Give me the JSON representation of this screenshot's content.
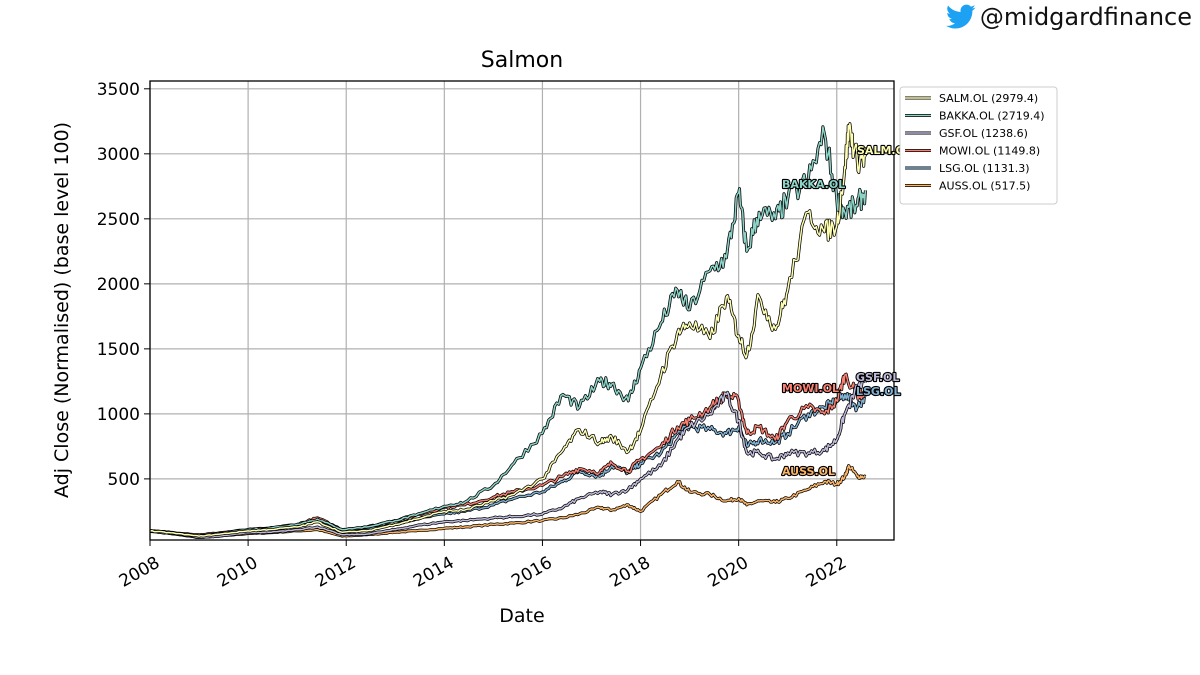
{
  "header": {
    "handle": "@midgardfinance",
    "icon": "twitter-bird-icon",
    "icon_color": "#1DA1F2"
  },
  "chart_data": {
    "type": "line",
    "title": "Salmon",
    "xlabel": "Date",
    "ylabel": "Adj Close (Normalised) (base level 100)",
    "xlim": [
      "2008-01-01",
      "2023-03-01"
    ],
    "ylim": [
      30,
      3560
    ],
    "x_ticks": [
      "2008",
      "2010",
      "2012",
      "2014",
      "2016",
      "2018",
      "2020",
      "2022"
    ],
    "y_ticks": [
      500,
      1000,
      1500,
      2000,
      2500,
      3000,
      3500
    ],
    "grid": true,
    "legend_position": "outside-right-top",
    "series": [
      {
        "name": "SALM.OL (2979.4)",
        "end_label": "SALM.OL",
        "color": "#FFFFB3",
        "points": [
          [
            "2008-01",
            100
          ],
          [
            "2008-06",
            85
          ],
          [
            "2009-01",
            60
          ],
          [
            "2009-06",
            75
          ],
          [
            "2010-01",
            100
          ],
          [
            "2010-06",
            110
          ],
          [
            "2011-01",
            130
          ],
          [
            "2011-06",
            170
          ],
          [
            "2011-12",
            90
          ],
          [
            "2012-06",
            100
          ],
          [
            "2013-01",
            150
          ],
          [
            "2013-06",
            190
          ],
          [
            "2014-01",
            250
          ],
          [
            "2014-06",
            260
          ],
          [
            "2015-01",
            330
          ],
          [
            "2015-06",
            380
          ],
          [
            "2016-01",
            500
          ],
          [
            "2016-06",
            720
          ],
          [
            "2016-10",
            880
          ],
          [
            "2017-03",
            780
          ],
          [
            "2017-06",
            820
          ],
          [
            "2017-10",
            710
          ],
          [
            "2018-01",
            870
          ],
          [
            "2018-06",
            1300
          ],
          [
            "2018-10",
            1620
          ],
          [
            "2019-01",
            1700
          ],
          [
            "2019-06",
            1580
          ],
          [
            "2019-10",
            1900
          ],
          [
            "2020-01",
            1600
          ],
          [
            "2020-03",
            1450
          ],
          [
            "2020-06",
            1900
          ],
          [
            "2020-10",
            1650
          ],
          [
            "2021-01",
            1950
          ],
          [
            "2021-06",
            2550
          ],
          [
            "2021-10",
            2400
          ],
          [
            "2022-01",
            2450
          ],
          [
            "2022-03",
            2900
          ],
          [
            "2022-04",
            3200
          ],
          [
            "2022-06",
            2950
          ],
          [
            "2022-08",
            2979.4
          ]
        ]
      },
      {
        "name": "BAKKA.OL (2719.4)",
        "end_label": "BAKKA.OL",
        "color": "#8DD3C7",
        "points": [
          [
            "2008-01",
            100
          ],
          [
            "2008-06",
            80
          ],
          [
            "2009-01",
            60
          ],
          [
            "2009-06",
            80
          ],
          [
            "2010-01",
            110
          ],
          [
            "2010-06",
            120
          ],
          [
            "2011-01",
            150
          ],
          [
            "2011-06",
            190
          ],
          [
            "2011-12",
            110
          ],
          [
            "2012-06",
            130
          ],
          [
            "2013-01",
            180
          ],
          [
            "2013-06",
            220
          ],
          [
            "2014-01",
            290
          ],
          [
            "2014-06",
            320
          ],
          [
            "2015-01",
            450
          ],
          [
            "2015-06",
            620
          ],
          [
            "2016-01",
            850
          ],
          [
            "2016-06",
            1150
          ],
          [
            "2016-10",
            1050
          ],
          [
            "2017-03",
            1250
          ],
          [
            "2017-06",
            1230
          ],
          [
            "2017-10",
            1100
          ],
          [
            "2018-01",
            1350
          ],
          [
            "2018-06",
            1700
          ],
          [
            "2018-10",
            1950
          ],
          [
            "2019-01",
            1800
          ],
          [
            "2019-06",
            2100
          ],
          [
            "2019-10",
            2200
          ],
          [
            "2020-01",
            2700
          ],
          [
            "2020-03",
            2250
          ],
          [
            "2020-06",
            2550
          ],
          [
            "2020-10",
            2500
          ],
          [
            "2021-01",
            2650
          ],
          [
            "2021-06",
            2800
          ],
          [
            "2021-10",
            3150
          ],
          [
            "2022-01",
            2650
          ],
          [
            "2022-03",
            2550
          ],
          [
            "2022-06",
            2600
          ],
          [
            "2022-08",
            2719.4
          ]
        ]
      },
      {
        "name": "GSF.OL (1238.6)",
        "end_label": "GSF.OL",
        "color": "#BEBADA",
        "points": [
          [
            "2008-01",
            100
          ],
          [
            "2008-06",
            80
          ],
          [
            "2009-01",
            50
          ],
          [
            "2009-06",
            60
          ],
          [
            "2010-01",
            85
          ],
          [
            "2010-06",
            90
          ],
          [
            "2011-01",
            110
          ],
          [
            "2011-06",
            130
          ],
          [
            "2011-12",
            70
          ],
          [
            "2012-06",
            75
          ],
          [
            "2013-01",
            110
          ],
          [
            "2013-06",
            140
          ],
          [
            "2014-01",
            170
          ],
          [
            "2014-06",
            180
          ],
          [
            "2015-01",
            200
          ],
          [
            "2015-06",
            210
          ],
          [
            "2016-01",
            230
          ],
          [
            "2016-06",
            280
          ],
          [
            "2016-10",
            350
          ],
          [
            "2017-03",
            400
          ],
          [
            "2017-06",
            380
          ],
          [
            "2017-10",
            420
          ],
          [
            "2018-01",
            500
          ],
          [
            "2018-06",
            600
          ],
          [
            "2018-10",
            800
          ],
          [
            "2019-01",
            900
          ],
          [
            "2019-06",
            1000
          ],
          [
            "2019-10",
            1150
          ],
          [
            "2020-01",
            950
          ],
          [
            "2020-03",
            700
          ],
          [
            "2020-06",
            700
          ],
          [
            "2020-10",
            650
          ],
          [
            "2021-01",
            700
          ],
          [
            "2021-06",
            700
          ],
          [
            "2021-10",
            720
          ],
          [
            "2022-01",
            800
          ],
          [
            "2022-03",
            1000
          ],
          [
            "2022-06",
            1200
          ],
          [
            "2022-08",
            1238.6
          ]
        ]
      },
      {
        "name": "MOWI.OL (1149.8)",
        "end_label": "MOWI.OL",
        "color": "#FB8072",
        "points": [
          [
            "2008-01",
            100
          ],
          [
            "2008-06",
            90
          ],
          [
            "2009-01",
            70
          ],
          [
            "2009-06",
            85
          ],
          [
            "2010-01",
            110
          ],
          [
            "2010-06",
            120
          ],
          [
            "2011-01",
            150
          ],
          [
            "2011-06",
            200
          ],
          [
            "2011-12",
            110
          ],
          [
            "2012-06",
            130
          ],
          [
            "2013-01",
            180
          ],
          [
            "2013-06",
            220
          ],
          [
            "2014-01",
            280
          ],
          [
            "2014-06",
            300
          ],
          [
            "2015-01",
            360
          ],
          [
            "2015-06",
            400
          ],
          [
            "2016-01",
            450
          ],
          [
            "2016-06",
            520
          ],
          [
            "2016-10",
            580
          ],
          [
            "2017-03",
            550
          ],
          [
            "2017-06",
            620
          ],
          [
            "2017-10",
            560
          ],
          [
            "2018-01",
            650
          ],
          [
            "2018-06",
            750
          ],
          [
            "2018-10",
            900
          ],
          [
            "2019-01",
            950
          ],
          [
            "2019-06",
            1050
          ],
          [
            "2019-10",
            1150
          ],
          [
            "2020-01",
            1100
          ],
          [
            "2020-03",
            850
          ],
          [
            "2020-06",
            900
          ],
          [
            "2020-10",
            800
          ],
          [
            "2021-01",
            950
          ],
          [
            "2021-06",
            1050
          ],
          [
            "2021-10",
            1000
          ],
          [
            "2022-01",
            1100
          ],
          [
            "2022-03",
            1300
          ],
          [
            "2022-06",
            1150
          ],
          [
            "2022-08",
            1149.8
          ]
        ]
      },
      {
        "name": "LSG.OL (1131.3)",
        "end_label": "LSG.OL",
        "color": "#80B1D3",
        "points": [
          [
            "2008-01",
            100
          ],
          [
            "2008-06",
            85
          ],
          [
            "2009-01",
            60
          ],
          [
            "2009-06",
            75
          ],
          [
            "2010-01",
            100
          ],
          [
            "2010-06",
            110
          ],
          [
            "2011-01",
            140
          ],
          [
            "2011-06",
            180
          ],
          [
            "2011-12",
            90
          ],
          [
            "2012-06",
            110
          ],
          [
            "2013-01",
            150
          ],
          [
            "2013-06",
            190
          ],
          [
            "2014-01",
            230
          ],
          [
            "2014-06",
            250
          ],
          [
            "2015-01",
            300
          ],
          [
            "2015-06",
            350
          ],
          [
            "2016-01",
            400
          ],
          [
            "2016-06",
            480
          ],
          [
            "2016-10",
            560
          ],
          [
            "2017-03",
            520
          ],
          [
            "2017-06",
            600
          ],
          [
            "2017-10",
            550
          ],
          [
            "2018-01",
            620
          ],
          [
            "2018-06",
            700
          ],
          [
            "2018-10",
            850
          ],
          [
            "2019-01",
            900
          ],
          [
            "2019-06",
            880
          ],
          [
            "2019-10",
            850
          ],
          [
            "2020-01",
            900
          ],
          [
            "2020-03",
            750
          ],
          [
            "2020-06",
            800
          ],
          [
            "2020-10",
            780
          ],
          [
            "2021-01",
            850
          ],
          [
            "2021-06",
            1000
          ],
          [
            "2021-10",
            1050
          ],
          [
            "2022-01",
            1100
          ],
          [
            "2022-03",
            1150
          ],
          [
            "2022-06",
            1050
          ],
          [
            "2022-08",
            1131.3
          ]
        ]
      },
      {
        "name": "AUSS.OL (517.5)",
        "end_label": "AUSS.OL",
        "color": "#FDB462",
        "points": [
          [
            "2008-01",
            100
          ],
          [
            "2008-06",
            80
          ],
          [
            "2009-01",
            50
          ],
          [
            "2009-06",
            60
          ],
          [
            "2010-01",
            80
          ],
          [
            "2010-06",
            85
          ],
          [
            "2011-01",
            100
          ],
          [
            "2011-06",
            110
          ],
          [
            "2011-12",
            60
          ],
          [
            "2012-06",
            70
          ],
          [
            "2013-01",
            90
          ],
          [
            "2013-06",
            100
          ],
          [
            "2014-01",
            120
          ],
          [
            "2014-06",
            130
          ],
          [
            "2015-01",
            150
          ],
          [
            "2015-06",
            160
          ],
          [
            "2016-01",
            180
          ],
          [
            "2016-06",
            200
          ],
          [
            "2016-10",
            230
          ],
          [
            "2017-03",
            280
          ],
          [
            "2017-06",
            260
          ],
          [
            "2017-10",
            300
          ],
          [
            "2018-01",
            250
          ],
          [
            "2018-06",
            380
          ],
          [
            "2018-10",
            480
          ],
          [
            "2019-01",
            400
          ],
          [
            "2019-06",
            380
          ],
          [
            "2019-10",
            330
          ],
          [
            "2020-01",
            350
          ],
          [
            "2020-03",
            300
          ],
          [
            "2020-06",
            330
          ],
          [
            "2020-10",
            320
          ],
          [
            "2021-01",
            350
          ],
          [
            "2021-06",
            420
          ],
          [
            "2021-10",
            480
          ],
          [
            "2022-01",
            460
          ],
          [
            "2022-03",
            520
          ],
          [
            "2022-04",
            600
          ],
          [
            "2022-06",
            520
          ],
          [
            "2022-08",
            517.5
          ]
        ]
      }
    ]
  }
}
